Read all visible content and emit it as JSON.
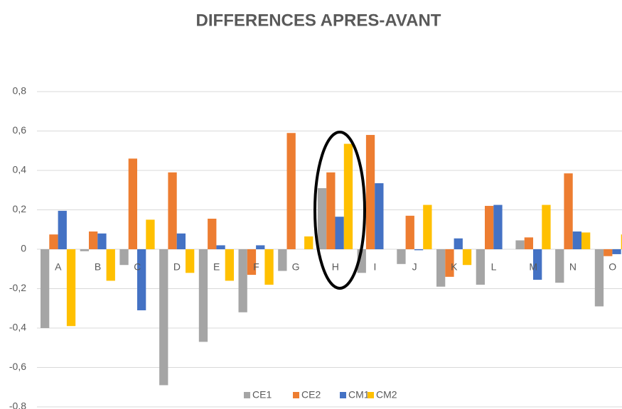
{
  "chart_data": {
    "type": "bar",
    "title": "DIFFERENCES APRES-AVANT",
    "categories": [
      "A",
      "B",
      "C",
      "D",
      "E",
      "F",
      "G",
      "H",
      "I",
      "J",
      "K",
      "L",
      "M",
      "N",
      "O"
    ],
    "series": [
      {
        "name": "CE1",
        "color": "#a5a5a5",
        "values": [
          -0.4,
          -0.01,
          -0.08,
          -0.69,
          -0.47,
          -0.32,
          -0.11,
          0.31,
          -0.12,
          -0.075,
          -0.19,
          -0.18,
          0.045,
          -0.17,
          -0.29
        ]
      },
      {
        "name": "CE2",
        "color": "#ed7d31",
        "values": [
          0.075,
          0.09,
          0.46,
          0.39,
          0.155,
          -0.13,
          0.59,
          0.39,
          0.58,
          0.17,
          -0.14,
          0.22,
          0.06,
          0.385,
          -0.035
        ]
      },
      {
        "name": "CM1",
        "color": "#4472c4",
        "values": [
          0.195,
          0.08,
          -0.31,
          0.08,
          0.02,
          0.02,
          0,
          0.165,
          0.335,
          -0.005,
          0.055,
          0.225,
          -0.155,
          0.09,
          -0.025
        ]
      },
      {
        "name": "CM2",
        "color": "#ffc000",
        "values": [
          -0.39,
          -0.16,
          0.15,
          -0.12,
          -0.16,
          -0.18,
          0.065,
          0.535,
          0,
          0.225,
          -0.08,
          0,
          0.225,
          0.085,
          0.075
        ]
      }
    ],
    "ylim": [
      -0.8,
      0.8
    ],
    "yticks": [
      {
        "value": -0.8,
        "label": "-0,8"
      },
      {
        "value": -0.6,
        "label": "-0,6"
      },
      {
        "value": -0.4,
        "label": "-0,4"
      },
      {
        "value": -0.2,
        "label": "-0,2"
      },
      0,
      {
        "value": 0.2,
        "label": "0,2"
      },
      {
        "value": 0.4,
        "label": "0,4"
      },
      {
        "value": 0.6,
        "label": "0,6"
      },
      {
        "value": 0.8,
        "label": "0,8"
      }
    ],
    "grid": true,
    "legend": "bottom"
  }
}
